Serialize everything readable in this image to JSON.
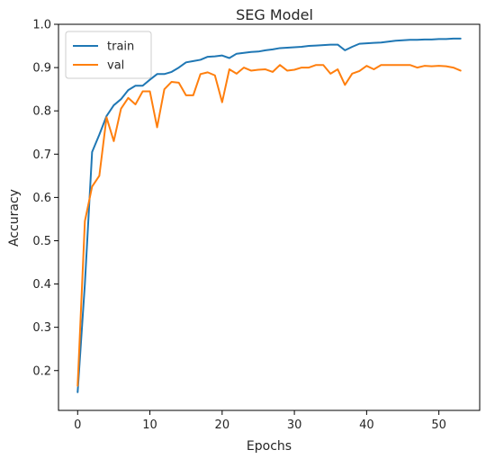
{
  "chart_data": {
    "type": "line",
    "title": "SEG Model",
    "xlabel": "Epochs",
    "ylabel": "Accuracy",
    "xlim": [
      -2.65,
      55.65
    ],
    "ylim": [
      0.108,
      1.0
    ],
    "xticks": [
      0,
      10,
      20,
      30,
      40,
      50
    ],
    "yticks": [
      0.2,
      0.3,
      0.4,
      0.5,
      0.6,
      0.7,
      0.8,
      0.9,
      1.0
    ],
    "grid": false,
    "legend": "upper left",
    "x": [
      0,
      1,
      2,
      3,
      4,
      5,
      6,
      7,
      8,
      9,
      10,
      11,
      12,
      13,
      14,
      15,
      16,
      17,
      18,
      19,
      20,
      21,
      22,
      23,
      24,
      25,
      26,
      27,
      28,
      29,
      30,
      31,
      32,
      33,
      34,
      35,
      36,
      37,
      38,
      39,
      40,
      41,
      42,
      43,
      44,
      45,
      46,
      47,
      48,
      49,
      50,
      51,
      52,
      53
    ],
    "series": [
      {
        "name": "train",
        "color": "#1f77b4",
        "values": [
          0.15,
          0.4,
          0.705,
          0.745,
          0.788,
          0.813,
          0.827,
          0.848,
          0.858,
          0.858,
          0.872,
          0.885,
          0.885,
          0.89,
          0.9,
          0.912,
          0.915,
          0.918,
          0.925,
          0.926,
          0.928,
          0.922,
          0.932,
          0.934,
          0.936,
          0.937,
          0.94,
          0.942,
          0.945,
          0.946,
          0.947,
          0.948,
          0.95,
          0.951,
          0.952,
          0.953,
          0.953,
          0.94,
          0.948,
          0.955,
          0.956,
          0.957,
          0.958,
          0.96,
          0.962,
          0.963,
          0.964,
          0.964,
          0.965,
          0.965,
          0.966,
          0.966,
          0.967,
          0.967
        ]
      },
      {
        "name": "val",
        "color": "#ff7f0e",
        "values": [
          0.165,
          0.545,
          0.625,
          0.65,
          0.785,
          0.73,
          0.805,
          0.83,
          0.815,
          0.845,
          0.845,
          0.762,
          0.85,
          0.867,
          0.865,
          0.836,
          0.836,
          0.885,
          0.889,
          0.882,
          0.82,
          0.896,
          0.886,
          0.9,
          0.893,
          0.895,
          0.896,
          0.89,
          0.906,
          0.893,
          0.895,
          0.9,
          0.9,
          0.906,
          0.906,
          0.886,
          0.896,
          0.86,
          0.886,
          0.892,
          0.904,
          0.896,
          0.906,
          0.906,
          0.906,
          0.906,
          0.906,
          0.9,
          0.904,
          0.903,
          0.904,
          0.903,
          0.9,
          0.893
        ]
      }
    ]
  }
}
